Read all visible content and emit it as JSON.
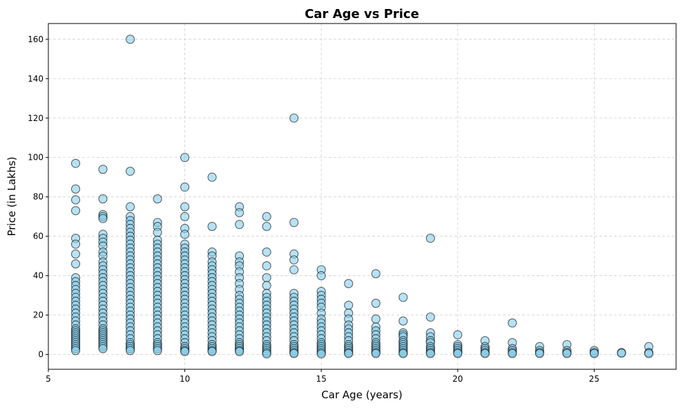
{
  "chart_data": {
    "type": "scatter",
    "title": "Car Age vs Price",
    "xlabel": "Car Age (years)",
    "ylabel": "Price (in Lakhs)",
    "xlim": [
      5,
      28
    ],
    "ylim": [
      -7.5,
      168
    ],
    "xticks": [
      5,
      10,
      15,
      20,
      25
    ],
    "yticks": [
      0,
      20,
      40,
      60,
      80,
      100,
      120,
      140,
      160
    ],
    "grid": true,
    "marker_fill": "#87ceeb",
    "marker_edge": "#000000",
    "grid_color": "#b0b0b0",
    "points": [
      [
        6,
        97
      ],
      [
        6,
        84
      ],
      [
        6,
        78.5
      ],
      [
        6,
        73
      ],
      [
        6,
        59
      ],
      [
        6,
        56
      ],
      [
        6,
        51
      ],
      [
        6,
        46
      ],
      [
        6,
        39
      ],
      [
        6,
        37
      ],
      [
        6,
        35
      ],
      [
        6,
        33
      ],
      [
        6,
        31
      ],
      [
        6,
        29
      ],
      [
        6,
        27
      ],
      [
        6,
        25
      ],
      [
        6,
        23
      ],
      [
        6,
        21
      ],
      [
        6,
        19
      ],
      [
        6,
        17
      ],
      [
        6,
        15
      ],
      [
        6,
        13
      ],
      [
        6,
        12
      ],
      [
        6,
        11
      ],
      [
        6,
        10
      ],
      [
        6,
        9
      ],
      [
        6,
        8
      ],
      [
        6,
        7
      ],
      [
        6,
        6
      ],
      [
        6,
        5
      ],
      [
        6,
        4
      ],
      [
        6,
        3
      ],
      [
        6,
        2
      ],
      [
        7,
        94
      ],
      [
        7,
        79
      ],
      [
        7,
        71
      ],
      [
        7,
        70
      ],
      [
        7,
        69
      ],
      [
        7,
        61
      ],
      [
        7,
        59
      ],
      [
        7,
        57
      ],
      [
        7,
        55
      ],
      [
        7,
        52
      ],
      [
        7,
        50
      ],
      [
        7,
        47
      ],
      [
        7,
        45
      ],
      [
        7,
        43
      ],
      [
        7,
        41
      ],
      [
        7,
        39
      ],
      [
        7,
        37
      ],
      [
        7,
        35
      ],
      [
        7,
        33
      ],
      [
        7,
        31
      ],
      [
        7,
        29
      ],
      [
        7,
        27
      ],
      [
        7,
        25
      ],
      [
        7,
        23
      ],
      [
        7,
        21
      ],
      [
        7,
        19
      ],
      [
        7,
        17
      ],
      [
        7,
        15
      ],
      [
        7,
        13
      ],
      [
        7,
        12
      ],
      [
        7,
        11
      ],
      [
        7,
        10
      ],
      [
        7,
        9
      ],
      [
        7,
        8
      ],
      [
        7,
        7
      ],
      [
        7,
        6
      ],
      [
        7,
        5
      ],
      [
        7,
        4
      ],
      [
        7,
        3
      ],
      [
        8,
        160
      ],
      [
        8,
        93
      ],
      [
        8,
        75
      ],
      [
        8,
        70
      ],
      [
        8,
        68
      ],
      [
        8,
        66
      ],
      [
        8,
        64
      ],
      [
        8,
        62
      ],
      [
        8,
        60
      ],
      [
        8,
        58
      ],
      [
        8,
        56
      ],
      [
        8,
        54
      ],
      [
        8,
        52
      ],
      [
        8,
        50
      ],
      [
        8,
        48
      ],
      [
        8,
        46
      ],
      [
        8,
        44
      ],
      [
        8,
        42
      ],
      [
        8,
        40
      ],
      [
        8,
        38
      ],
      [
        8,
        36
      ],
      [
        8,
        34
      ],
      [
        8,
        32
      ],
      [
        8,
        30
      ],
      [
        8,
        28
      ],
      [
        8,
        26
      ],
      [
        8,
        24
      ],
      [
        8,
        22
      ],
      [
        8,
        20
      ],
      [
        8,
        18
      ],
      [
        8,
        16
      ],
      [
        8,
        14
      ],
      [
        8,
        12
      ],
      [
        8,
        10
      ],
      [
        8,
        8
      ],
      [
        8,
        6
      ],
      [
        8,
        5
      ],
      [
        8,
        4
      ],
      [
        8,
        3
      ],
      [
        8,
        2
      ],
      [
        9,
        79
      ],
      [
        9,
        67
      ],
      [
        9,
        65
      ],
      [
        9,
        62
      ],
      [
        9,
        58
      ],
      [
        9,
        56
      ],
      [
        9,
        54
      ],
      [
        9,
        52
      ],
      [
        9,
        50
      ],
      [
        9,
        48
      ],
      [
        9,
        46
      ],
      [
        9,
        44
      ],
      [
        9,
        42
      ],
      [
        9,
        40
      ],
      [
        9,
        38
      ],
      [
        9,
        36
      ],
      [
        9,
        34
      ],
      [
        9,
        32
      ],
      [
        9,
        30
      ],
      [
        9,
        28
      ],
      [
        9,
        26
      ],
      [
        9,
        24
      ],
      [
        9,
        22
      ],
      [
        9,
        20
      ],
      [
        9,
        18
      ],
      [
        9,
        16
      ],
      [
        9,
        14
      ],
      [
        9,
        12
      ],
      [
        9,
        10
      ],
      [
        9,
        8
      ],
      [
        9,
        6
      ],
      [
        9,
        5
      ],
      [
        9,
        4
      ],
      [
        9,
        3
      ],
      [
        9,
        2
      ],
      [
        10,
        100
      ],
      [
        10,
        85
      ],
      [
        10,
        75
      ],
      [
        10,
        70
      ],
      [
        10,
        64
      ],
      [
        10,
        61
      ],
      [
        10,
        56
      ],
      [
        10,
        54
      ],
      [
        10,
        52
      ],
      [
        10,
        50
      ],
      [
        10,
        48
      ],
      [
        10,
        46
      ],
      [
        10,
        44
      ],
      [
        10,
        42
      ],
      [
        10,
        40
      ],
      [
        10,
        38
      ],
      [
        10,
        36
      ],
      [
        10,
        34
      ],
      [
        10,
        32
      ],
      [
        10,
        30
      ],
      [
        10,
        28
      ],
      [
        10,
        26
      ],
      [
        10,
        24
      ],
      [
        10,
        22
      ],
      [
        10,
        20
      ],
      [
        10,
        18
      ],
      [
        10,
        16
      ],
      [
        10,
        14
      ],
      [
        10,
        12
      ],
      [
        10,
        10
      ],
      [
        10,
        8
      ],
      [
        10,
        6
      ],
      [
        10,
        4
      ],
      [
        10,
        3
      ],
      [
        10,
        2
      ],
      [
        10,
        1.5
      ],
      [
        11,
        90
      ],
      [
        11,
        65
      ],
      [
        11,
        52
      ],
      [
        11,
        50
      ],
      [
        11,
        47
      ],
      [
        11,
        45
      ],
      [
        11,
        43
      ],
      [
        11,
        41
      ],
      [
        11,
        39
      ],
      [
        11,
        37
      ],
      [
        11,
        35
      ],
      [
        11,
        33
      ],
      [
        11,
        31
      ],
      [
        11,
        29
      ],
      [
        11,
        27
      ],
      [
        11,
        25
      ],
      [
        11,
        23
      ],
      [
        11,
        21
      ],
      [
        11,
        19
      ],
      [
        11,
        17
      ],
      [
        11,
        15
      ],
      [
        11,
        13
      ],
      [
        11,
        11
      ],
      [
        11,
        9
      ],
      [
        11,
        7
      ],
      [
        11,
        5
      ],
      [
        11,
        4
      ],
      [
        11,
        3
      ],
      [
        11,
        2
      ],
      [
        11,
        1.5
      ],
      [
        12,
        75
      ],
      [
        12,
        72
      ],
      [
        12,
        66
      ],
      [
        12,
        50
      ],
      [
        12,
        47
      ],
      [
        12,
        45
      ],
      [
        12,
        42
      ],
      [
        12,
        39
      ],
      [
        12,
        36
      ],
      [
        12,
        33
      ],
      [
        12,
        30
      ],
      [
        12,
        28
      ],
      [
        12,
        26
      ],
      [
        12,
        24
      ],
      [
        12,
        22
      ],
      [
        12,
        20
      ],
      [
        12,
        18
      ],
      [
        12,
        16
      ],
      [
        12,
        14
      ],
      [
        12,
        12
      ],
      [
        12,
        10
      ],
      [
        12,
        8
      ],
      [
        12,
        6
      ],
      [
        12,
        5
      ],
      [
        12,
        4
      ],
      [
        12,
        3
      ],
      [
        12,
        2
      ],
      [
        12,
        1.5
      ],
      [
        13,
        70
      ],
      [
        13,
        65
      ],
      [
        13,
        52
      ],
      [
        13,
        45
      ],
      [
        13,
        39
      ],
      [
        13,
        35
      ],
      [
        13,
        31
      ],
      [
        13,
        29
      ],
      [
        13,
        27
      ],
      [
        13,
        25
      ],
      [
        13,
        23
      ],
      [
        13,
        21
      ],
      [
        13,
        19
      ],
      [
        13,
        17
      ],
      [
        13,
        15
      ],
      [
        13,
        13
      ],
      [
        13,
        11
      ],
      [
        13,
        9
      ],
      [
        13,
        7
      ],
      [
        13,
        5
      ],
      [
        13,
        4
      ],
      [
        13,
        3
      ],
      [
        13,
        2
      ],
      [
        13,
        1
      ],
      [
        13,
        0.3
      ],
      [
        14,
        120
      ],
      [
        14,
        67
      ],
      [
        14,
        51
      ],
      [
        14,
        48
      ],
      [
        14,
        43
      ],
      [
        14,
        31
      ],
      [
        14,
        29
      ],
      [
        14,
        27
      ],
      [
        14,
        25
      ],
      [
        14,
        23
      ],
      [
        14,
        21
      ],
      [
        14,
        19
      ],
      [
        14,
        17
      ],
      [
        14,
        15
      ],
      [
        14,
        13
      ],
      [
        14,
        11
      ],
      [
        14,
        9
      ],
      [
        14,
        7
      ],
      [
        14,
        5
      ],
      [
        14,
        4
      ],
      [
        14,
        3
      ],
      [
        14,
        2
      ],
      [
        14,
        1
      ],
      [
        14,
        0.5
      ],
      [
        15,
        43
      ],
      [
        15,
        40
      ],
      [
        15,
        32
      ],
      [
        15,
        30
      ],
      [
        15,
        28
      ],
      [
        15,
        26
      ],
      [
        15,
        24
      ],
      [
        15,
        21
      ],
      [
        15,
        18
      ],
      [
        15,
        16
      ],
      [
        15,
        14
      ],
      [
        15,
        12
      ],
      [
        15,
        10
      ],
      [
        15,
        8
      ],
      [
        15,
        6
      ],
      [
        15,
        5
      ],
      [
        15,
        4
      ],
      [
        15,
        3
      ],
      [
        15,
        2
      ],
      [
        15,
        1
      ],
      [
        15,
        0.3
      ],
      [
        16,
        36
      ],
      [
        16,
        25
      ],
      [
        16,
        21
      ],
      [
        16,
        18
      ],
      [
        16,
        15
      ],
      [
        16,
        13
      ],
      [
        16,
        11
      ],
      [
        16,
        9
      ],
      [
        16,
        7
      ],
      [
        16,
        5
      ],
      [
        16,
        4
      ],
      [
        16,
        3
      ],
      [
        16,
        2
      ],
      [
        16,
        1
      ],
      [
        16,
        0.5
      ],
      [
        17,
        41
      ],
      [
        17,
        26
      ],
      [
        17,
        18
      ],
      [
        17,
        14
      ],
      [
        17,
        12
      ],
      [
        17,
        10
      ],
      [
        17,
        8
      ],
      [
        17,
        6
      ],
      [
        17,
        5
      ],
      [
        17,
        4
      ],
      [
        17,
        3
      ],
      [
        17,
        2
      ],
      [
        17,
        1
      ],
      [
        17,
        0.5
      ],
      [
        18,
        29
      ],
      [
        18,
        17
      ],
      [
        18,
        11
      ],
      [
        18,
        10
      ],
      [
        18,
        9
      ],
      [
        18,
        7
      ],
      [
        18,
        6
      ],
      [
        18,
        5
      ],
      [
        18,
        4
      ],
      [
        18,
        3
      ],
      [
        18,
        2
      ],
      [
        18,
        1
      ],
      [
        18,
        0.5
      ],
      [
        19,
        59
      ],
      [
        19,
        19
      ],
      [
        19,
        11
      ],
      [
        19,
        9
      ],
      [
        19,
        7
      ],
      [
        19,
        6
      ],
      [
        19,
        4
      ],
      [
        19,
        3
      ],
      [
        19,
        2
      ],
      [
        19,
        1
      ],
      [
        19,
        0.5
      ],
      [
        20,
        10
      ],
      [
        20,
        5
      ],
      [
        20,
        4
      ],
      [
        20,
        3
      ],
      [
        20,
        2
      ],
      [
        20,
        1
      ],
      [
        20,
        0.5
      ],
      [
        21,
        7
      ],
      [
        21,
        4
      ],
      [
        21,
        3
      ],
      [
        21,
        2
      ],
      [
        21,
        1
      ],
      [
        21,
        0.5
      ],
      [
        22,
        16
      ],
      [
        22,
        6
      ],
      [
        22,
        3
      ],
      [
        22,
        2
      ],
      [
        22,
        1
      ],
      [
        22,
        0.5
      ],
      [
        23,
        4
      ],
      [
        23,
        2
      ],
      [
        23,
        1
      ],
      [
        23,
        0.5
      ],
      [
        24,
        5
      ],
      [
        24,
        2
      ],
      [
        24,
        1
      ],
      [
        24,
        0.5
      ],
      [
        25,
        2
      ],
      [
        25,
        1
      ],
      [
        25,
        0.5
      ],
      [
        26,
        1
      ],
      [
        26,
        0.7
      ],
      [
        27,
        4
      ],
      [
        27,
        1
      ],
      [
        27,
        0.5
      ]
    ]
  }
}
